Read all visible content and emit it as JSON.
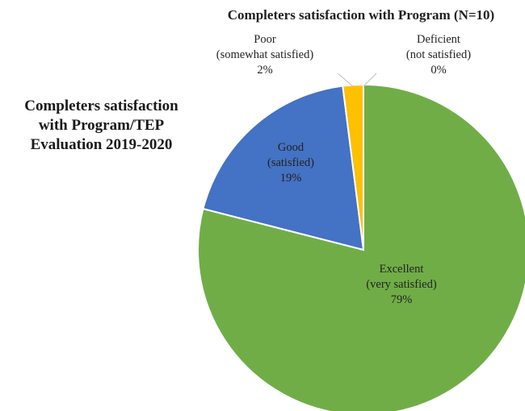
{
  "side_title": {
    "line1": "Completers satisfaction",
    "line2": "with Program/TEP",
    "line3": "Evaluation 2019-2020"
  },
  "chart_data": {
    "type": "pie",
    "title": "Completers satisfaction with Program (N=10)",
    "start_angle_deg": 0,
    "direction": "clockwise",
    "slices": [
      {
        "key": "excellent",
        "label": "Excellent",
        "sublabel": "(very satisfied)",
        "value_text": "79%",
        "value": 79,
        "color": "#70ad47"
      },
      {
        "key": "good",
        "label": "Good",
        "sublabel": "(satisfied)",
        "value_text": "19%",
        "value": 19,
        "color": "#4472c4"
      },
      {
        "key": "poor",
        "label": "Poor",
        "sublabel": "(somewhat satisfied)",
        "value_text": "2%",
        "value": 2,
        "color": "#ffc000"
      },
      {
        "key": "deficient",
        "label": "Deficient",
        "sublabel": "(not satisfied)",
        "value_text": "0%",
        "value": 0,
        "color": "#a5a5a5"
      }
    ]
  }
}
